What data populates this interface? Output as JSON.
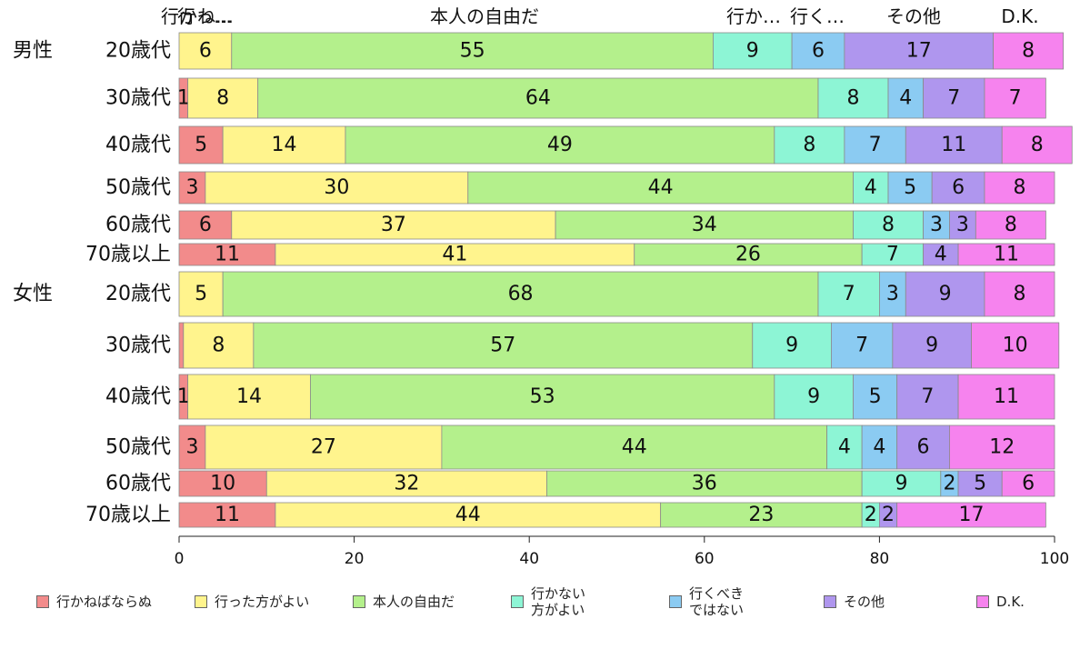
{
  "chart_data": {
    "type": "bar",
    "orientation": "horizontal",
    "stacked": true,
    "title": "",
    "xlabel": "",
    "ylabel": "",
    "xlim": [
      0,
      100
    ],
    "xticks": [
      0,
      20,
      40,
      60,
      80,
      100
    ],
    "grid": false,
    "legend_position": "bottom",
    "top_labels": [
      "行かね…",
      "行っ…",
      "本人の自由だ",
      "行か…",
      "行く…",
      "その他",
      "D.K."
    ],
    "groups": [
      {
        "label": "男性",
        "rows": [
          0,
          1,
          2,
          3,
          4,
          5
        ]
      },
      {
        "label": "女性",
        "rows": [
          6,
          7,
          8,
          9,
          10,
          11
        ]
      }
    ],
    "categories": [
      "20歳代",
      "30歳代",
      "40歳代",
      "50歳代",
      "60歳代",
      "70歳以上",
      "20歳代",
      "30歳代",
      "40歳代",
      "50歳代",
      "60歳代",
      "70歳以上"
    ],
    "series": [
      {
        "name": "行かねばならぬ",
        "color": "#F28B8B",
        "values": [
          0,
          1,
          5,
          3,
          6,
          11,
          0,
          0.5,
          1,
          3,
          10,
          11
        ],
        "labels": [
          "",
          "1",
          "5",
          "3",
          "6",
          "11",
          "",
          "",
          "1",
          "3",
          "10",
          "11"
        ]
      },
      {
        "name": "行った方がよい",
        "color": "#FFF48D",
        "values": [
          6,
          8,
          14,
          30,
          37,
          41,
          5,
          8,
          14,
          27,
          32,
          44
        ],
        "labels": [
          "6",
          "8",
          "14",
          "30",
          "37",
          "41",
          "5",
          "8",
          "14",
          "27",
          "32",
          "44"
        ]
      },
      {
        "name": "本人の自由だ",
        "color": "#B4F08C",
        "values": [
          55,
          64,
          49,
          44,
          34,
          26,
          68,
          57,
          53,
          44,
          36,
          23
        ],
        "labels": [
          "55",
          "64",
          "49",
          "44",
          "34",
          "26",
          "68",
          "57",
          "53",
          "44",
          "36",
          "23"
        ]
      },
      {
        "name": "行かない\n方がよい",
        "color": "#8DF5D5",
        "values": [
          9,
          8,
          8,
          4,
          8,
          7,
          7,
          9,
          9,
          4,
          9,
          2
        ],
        "labels": [
          "9",
          "8",
          "8",
          "4",
          "8",
          "7",
          "7",
          "9",
          "9",
          "4",
          "9",
          "2"
        ]
      },
      {
        "name": "行くべき\nではない",
        "color": "#8BCBF2",
        "values": [
          6,
          4,
          7,
          5,
          3,
          0,
          3,
          7,
          5,
          4,
          2,
          0
        ],
        "labels": [
          "6",
          "4",
          "7",
          "5",
          "3",
          "",
          "3",
          "7",
          "5",
          "4",
          "2",
          ""
        ]
      },
      {
        "name": "その他",
        "color": "#AF96EE",
        "values": [
          17,
          7,
          11,
          6,
          3,
          4,
          9,
          9,
          7,
          6,
          5,
          2
        ],
        "labels": [
          "17",
          "7",
          "11",
          "6",
          "3",
          "4",
          "9",
          "9",
          "7",
          "6",
          "5",
          "2"
        ]
      },
      {
        "name": "D.K.",
        "color": "#F683EE",
        "values": [
          8,
          7,
          8,
          8,
          8,
          11,
          8,
          10,
          11,
          12,
          6,
          17
        ],
        "labels": [
          "8",
          "7",
          "8",
          "8",
          "8",
          "11",
          "8",
          "10",
          "11",
          "12",
          "6",
          "17"
        ]
      }
    ]
  }
}
